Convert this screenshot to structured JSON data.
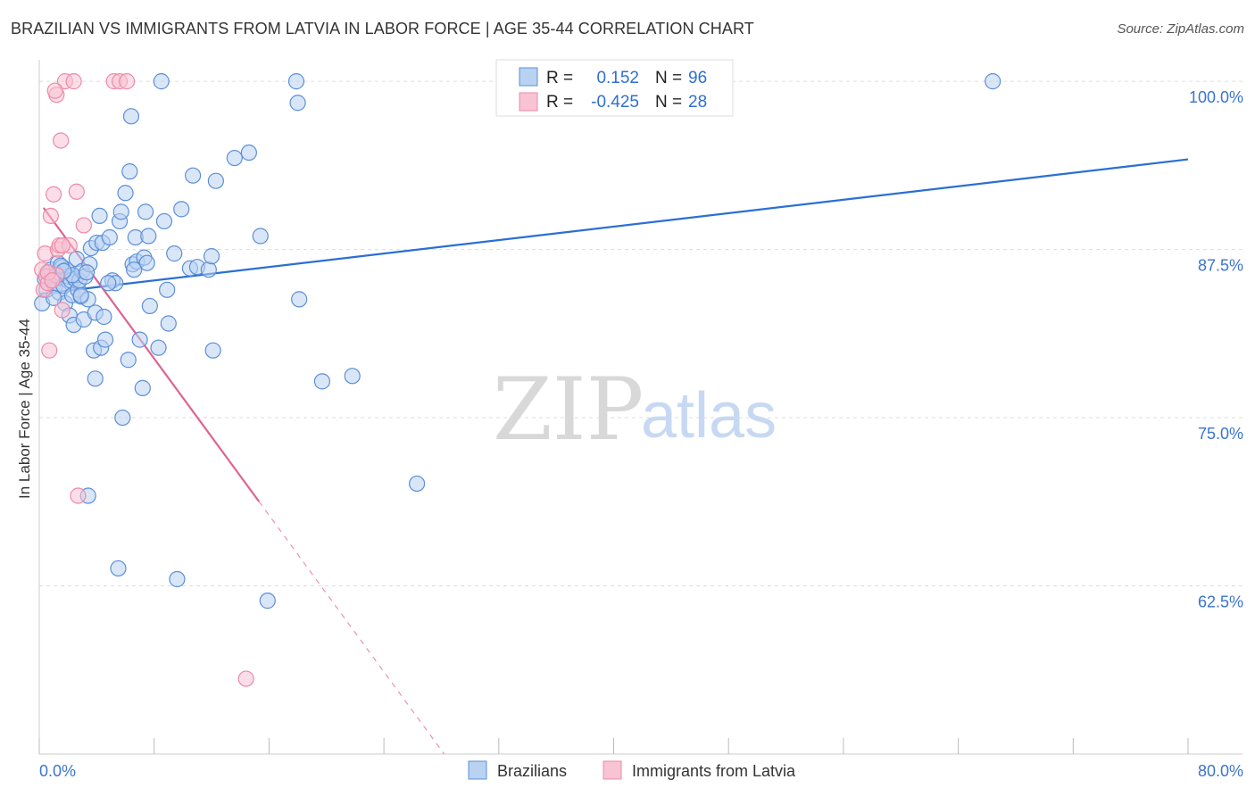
{
  "title": "BRAZILIAN VS IMMIGRANTS FROM LATVIA IN LABOR FORCE | AGE 35-44 CORRELATION CHART",
  "source": "Source: ZipAtlas.com",
  "watermark": {
    "zip": "ZIP",
    "atlas": "atlas"
  },
  "colors": {
    "blue_fill": "#b9d2f2",
    "blue_stroke": "#5b8fd8",
    "blue_line": "#2a6fd3",
    "pink_fill": "#f8c3d3",
    "pink_stroke": "#ee8aa8",
    "pink_line": "#e0628f",
    "tick_text": "#3a74d0",
    "grid": "#dddddd"
  },
  "stats": [
    {
      "r_label": "R =",
      "r_value": "0.152",
      "n_label": "N =",
      "n_value": "96"
    },
    {
      "r_label": "R =",
      "r_value": "-0.425",
      "n_label": "N =",
      "n_value": "28"
    }
  ],
  "chart_data": {
    "type": "scatter",
    "title": "BRAZILIAN VS IMMIGRANTS FROM LATVIA IN LABOR FORCE | AGE 35-44 CORRELATION CHART",
    "xlabel": "",
    "ylabel": "In Labor Force | Age 35-44",
    "xlim": [
      0,
      80
    ],
    "ylim": [
      50,
      101.6
    ],
    "x_tick_labels": [
      "0.0%",
      "80.0%"
    ],
    "y_ticks": [
      62.5,
      75.0,
      87.5,
      100.0
    ],
    "y_tick_labels": [
      "62.5%",
      "75.0%",
      "87.5%",
      "100.0%"
    ],
    "legend": [
      {
        "name": "Brazilians",
        "color": "#b9d2f2"
      },
      {
        "name": "Immigrants from Latvia",
        "color": "#f8c3d3"
      }
    ],
    "series": [
      {
        "name": "Brazilians",
        "trend": {
          "x": [
            0,
            80
          ],
          "y": [
            84.2,
            94.2
          ],
          "dashed_from": null
        },
        "points": [
          [
            0.2,
            83.5
          ],
          [
            0.4,
            85.3
          ],
          [
            0.5,
            84.5
          ],
          [
            0.6,
            85.8
          ],
          [
            0.8,
            86.0
          ],
          [
            1.0,
            85.0
          ],
          [
            1.1,
            84.8
          ],
          [
            1.2,
            85.5
          ],
          [
            1.3,
            86.5
          ],
          [
            1.4,
            84.3
          ],
          [
            1.5,
            85.7
          ],
          [
            1.6,
            86.2
          ],
          [
            1.7,
            84.8
          ],
          [
            1.8,
            83.5
          ],
          [
            1.9,
            86.0
          ],
          [
            2.0,
            85.5
          ],
          [
            2.1,
            82.6
          ],
          [
            2.2,
            85.2
          ],
          [
            2.3,
            84.1
          ],
          [
            2.4,
            81.9
          ],
          [
            2.5,
            85.3
          ],
          [
            2.6,
            86.8
          ],
          [
            2.7,
            84.5
          ],
          [
            2.8,
            85.2
          ],
          [
            2.9,
            84.0
          ],
          [
            3.0,
            85.9
          ],
          [
            3.1,
            82.3
          ],
          [
            3.2,
            85.5
          ],
          [
            3.4,
            83.8
          ],
          [
            3.5,
            86.4
          ],
          [
            3.6,
            87.6
          ],
          [
            3.8,
            80.0
          ],
          [
            3.9,
            82.8
          ],
          [
            4.0,
            88.0
          ],
          [
            4.2,
            90.0
          ],
          [
            4.3,
            80.2
          ],
          [
            4.4,
            88.0
          ],
          [
            4.5,
            82.5
          ],
          [
            4.6,
            80.8
          ],
          [
            4.9,
            88.4
          ],
          [
            5.1,
            85.2
          ],
          [
            5.3,
            85.0
          ],
          [
            5.6,
            89.6
          ],
          [
            5.7,
            90.3
          ],
          [
            5.8,
            75.0
          ],
          [
            6.0,
            91.7
          ],
          [
            6.2,
            79.3
          ],
          [
            6.3,
            93.3
          ],
          [
            6.4,
            97.4
          ],
          [
            6.5,
            86.4
          ],
          [
            6.7,
            88.4
          ],
          [
            6.8,
            86.6
          ],
          [
            7.0,
            80.8
          ],
          [
            7.2,
            77.2
          ],
          [
            7.3,
            86.9
          ],
          [
            7.4,
            90.3
          ],
          [
            7.5,
            86.5
          ],
          [
            7.6,
            88.5
          ],
          [
            7.7,
            83.3
          ],
          [
            8.3,
            80.2
          ],
          [
            8.7,
            89.6
          ],
          [
            8.9,
            84.5
          ],
          [
            9.0,
            82.0
          ],
          [
            9.4,
            87.2
          ],
          [
            9.6,
            63.0
          ],
          [
            9.9,
            90.5
          ],
          [
            10.5,
            86.1
          ],
          [
            10.7,
            93.0
          ],
          [
            11.0,
            86.2
          ],
          [
            11.8,
            86.0
          ],
          [
            12.0,
            87.0
          ],
          [
            12.1,
            80.0
          ],
          [
            12.3,
            92.6
          ],
          [
            13.6,
            94.3
          ],
          [
            14.6,
            94.7
          ],
          [
            15.4,
            88.5
          ],
          [
            15.9,
            61.4
          ],
          [
            17.9,
            100.0
          ],
          [
            18.0,
            98.4
          ],
          [
            18.1,
            83.8
          ],
          [
            19.7,
            77.7
          ],
          [
            21.8,
            78.1
          ],
          [
            26.3,
            70.1
          ],
          [
            66.4,
            100.0
          ],
          [
            3.4,
            69.2
          ],
          [
            5.5,
            63.8
          ],
          [
            3.9,
            77.9
          ],
          [
            2.3,
            85.6
          ],
          [
            1.5,
            86.3
          ],
          [
            1.0,
            83.9
          ],
          [
            2.9,
            84.1
          ],
          [
            4.8,
            85.0
          ],
          [
            6.6,
            86.0
          ],
          [
            3.3,
            85.8
          ],
          [
            1.7,
            85.9
          ],
          [
            8.5,
            100.0
          ]
        ]
      },
      {
        "name": "Immigrants from Latvia",
        "trend": {
          "x": [
            0.3,
            28.2
          ],
          "y": [
            90.6,
            50.0
          ],
          "dashed_from": 15.3
        },
        "points": [
          [
            0.2,
            86.0
          ],
          [
            0.3,
            84.5
          ],
          [
            0.4,
            87.2
          ],
          [
            0.5,
            85.5
          ],
          [
            0.6,
            85.0
          ],
          [
            0.7,
            80.0
          ],
          [
            0.8,
            90.0
          ],
          [
            1.0,
            91.6
          ],
          [
            1.2,
            85.6
          ],
          [
            1.3,
            87.5
          ],
          [
            1.4,
            87.8
          ],
          [
            1.5,
            95.6
          ],
          [
            1.6,
            83.0
          ],
          [
            1.8,
            100.0
          ],
          [
            2.1,
            87.8
          ],
          [
            2.4,
            100.0
          ],
          [
            2.6,
            91.8
          ],
          [
            2.7,
            69.2
          ],
          [
            3.1,
            89.3
          ],
          [
            5.2,
            100.0
          ],
          [
            5.6,
            100.0
          ],
          [
            6.1,
            100.0
          ],
          [
            1.2,
            99.0
          ],
          [
            1.1,
            99.3
          ],
          [
            0.6,
            85.8
          ],
          [
            0.9,
            85.2
          ],
          [
            14.4,
            55.6
          ],
          [
            1.6,
            87.8
          ]
        ]
      }
    ]
  }
}
